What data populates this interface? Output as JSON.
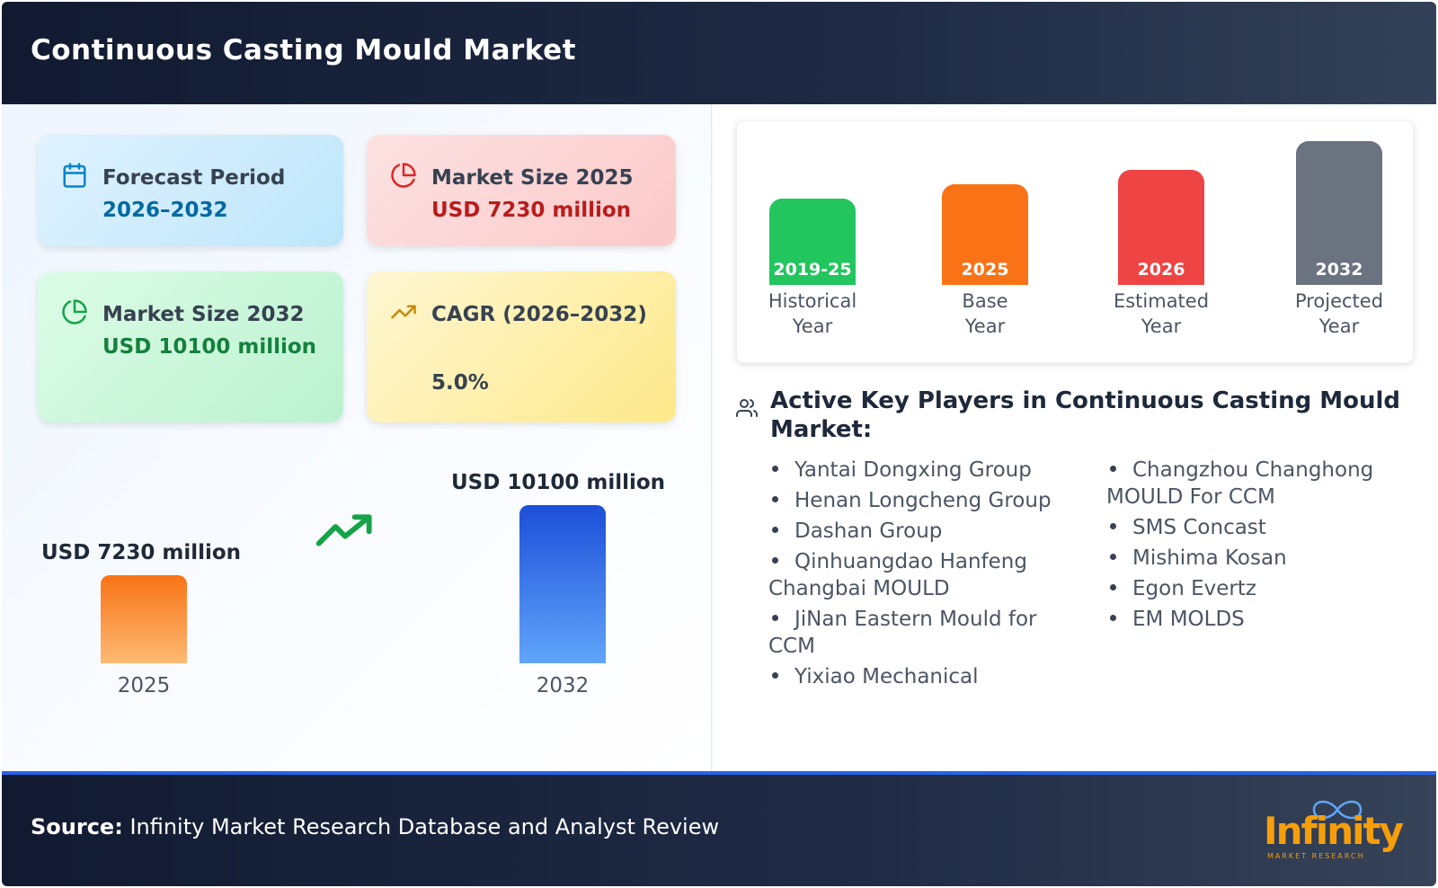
{
  "header": {
    "title": "Continuous Casting Mould Market"
  },
  "cards": {
    "forecast": {
      "label": "Forecast Period",
      "value": "2026–2032",
      "icon": "calendar-icon"
    },
    "size2025": {
      "label": "Market Size 2025",
      "value": "USD 7230 million",
      "icon": "pie-chart-icon"
    },
    "size2032": {
      "label": "Market Size 2032",
      "value": "USD 10100 million",
      "icon": "pie-chart-icon"
    },
    "cagr": {
      "label": "CAGR (2026–2032)",
      "value": "5.0%",
      "icon": "trending-up-icon"
    }
  },
  "comparison": {
    "left": {
      "label": "USD 7230 million",
      "year": "2025",
      "value": 7230
    },
    "right": {
      "label": "USD 10100 million",
      "year": "2032",
      "value": 10100
    }
  },
  "timeline": [
    {
      "year": "2019-25",
      "caption_line1": "Historical",
      "caption_line2": "Year",
      "color": "#22c55e"
    },
    {
      "year": "2025",
      "caption_line1": "Base",
      "caption_line2": "Year",
      "color": "#f97316"
    },
    {
      "year": "2026",
      "caption_line1": "Estimated",
      "caption_line2": "Year",
      "color": "#ef4444"
    },
    {
      "year": "2032",
      "caption_line1": "Projected",
      "caption_line2": "Year",
      "color": "#6b7280"
    }
  ],
  "players": {
    "title": "Active Key Players in Continuous Casting Mould Market:",
    "column1": [
      "Yantai Dongxing Group",
      "Henan Longcheng Group",
      "Dashan Group",
      "Qinhuangdao Hanfeng Changbai MOULD",
      "JiNan Eastern Mould for CCM",
      "Yixiao Mechanical"
    ],
    "column2": [
      "Changzhou Changhong MOULD For CCM",
      "SMS Concast",
      "Mishima Kosan",
      "Egon Evertz",
      "EM MOLDS"
    ]
  },
  "footer": {
    "source_label": "Source:",
    "source_text": "Infinity Market Research Database and Analyst Review",
    "logo_text": "Infinity",
    "logo_sub": "MARKET RESEARCH"
  },
  "colors": {
    "forecast_value": "#0369a1",
    "size2025_value": "#b91c1c",
    "size2032_value": "#15803d",
    "cagr_value": "#374151"
  }
}
